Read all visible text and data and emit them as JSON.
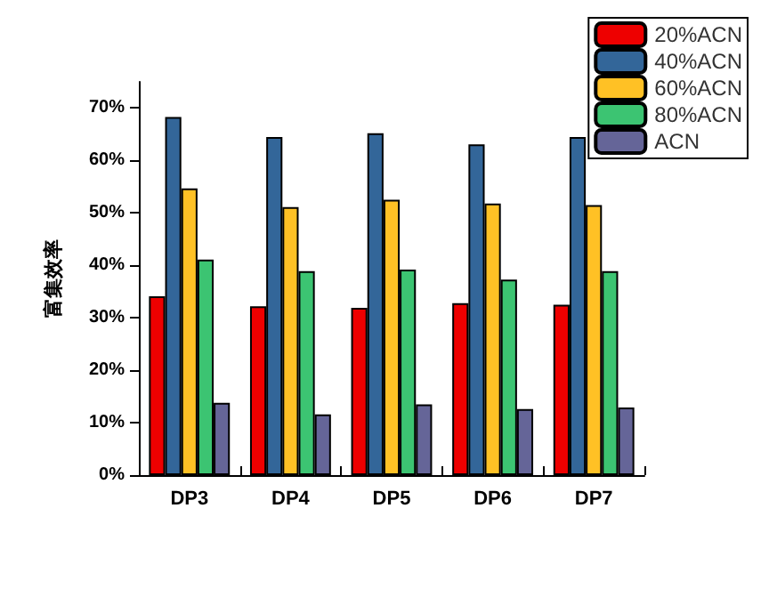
{
  "chart_data": {
    "type": "bar",
    "ylabel": "富集效率",
    "categories": [
      "DP3",
      "DP4",
      "DP5",
      "DP6",
      "DP7"
    ],
    "series": [
      {
        "name": "20%ACN",
        "color": "#ee0000",
        "values": [
          34.1,
          32.2,
          31.9,
          32.8,
          32.5
        ]
      },
      {
        "name": "40%ACN",
        "color": "#336699",
        "values": [
          68.3,
          64.5,
          65.2,
          63.1,
          64.5
        ]
      },
      {
        "name": "60%ACN",
        "color": "#ffc125",
        "values": [
          54.7,
          51.1,
          52.5,
          51.8,
          51.5
        ]
      },
      {
        "name": "80%ACN",
        "color": "#3cc472",
        "values": [
          41.1,
          38.9,
          39.2,
          37.3,
          38.9
        ]
      },
      {
        "name": "ACN",
        "color": "#656598",
        "values": [
          13.8,
          11.6,
          13.5,
          12.6,
          12.9
        ]
      }
    ],
    "ylim": [
      0,
      75
    ],
    "yticks": [
      {
        "value": 0,
        "label": "0%"
      },
      {
        "value": 10,
        "label": "10%"
      },
      {
        "value": 20,
        "label": "20%"
      },
      {
        "value": 30,
        "label": "30%"
      },
      {
        "value": 40,
        "label": "40%"
      },
      {
        "value": 50,
        "label": "50%"
      },
      {
        "value": 60,
        "label": "60%"
      },
      {
        "value": 70,
        "label": "70%"
      }
    ],
    "grid": false,
    "legend": "top right"
  }
}
